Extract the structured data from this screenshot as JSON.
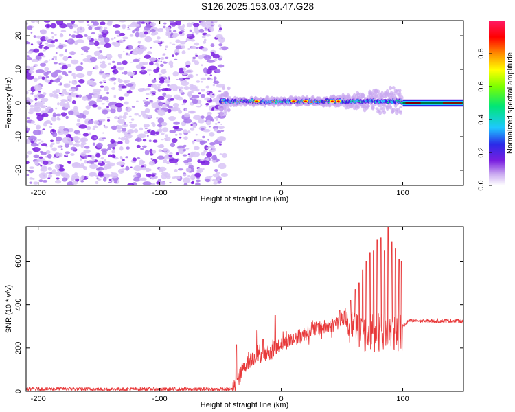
{
  "title": "S126.2025.153.03.47.G28",
  "chart_data": [
    {
      "type": "heatmap",
      "xlabel": "Height of straight line (km)",
      "ylabel": "Frequency (Hz)",
      "xlim": [
        -210,
        150
      ],
      "ylim": [
        -24.5,
        24.5
      ],
      "x_ticks": [
        -200,
        -100,
        0,
        100
      ],
      "y_ticks": [
        -20,
        -10,
        0,
        10,
        20
      ],
      "colorbar": {
        "label": "Normalized spectral amplitude",
        "range": [
          0,
          1
        ],
        "ticks": [
          0.0,
          0.2,
          0.4,
          0.6,
          0.8
        ],
        "colors": [
          "#ffffff",
          "#b28ce8",
          "#7a1ee0",
          "#2a2ae8",
          "#1ec8ff",
          "#00e676",
          "#7cff00",
          "#ffff00",
          "#ff8c00",
          "#ff0000",
          "#ff1a66"
        ]
      },
      "regions": [
        {
          "x": [
            -210,
            -50
          ],
          "description": "broadband noise",
          "level": 0.2
        },
        {
          "x": [
            -50,
            100
          ],
          "description": "signal near 0 Hz with spread",
          "center_hz": 0.5,
          "level": 0.7
        },
        {
          "x": [
            100,
            150
          ],
          "description": "narrow tone at 0 Hz",
          "center_hz": 0.0,
          "level": 0.95
        }
      ]
    },
    {
      "type": "line",
      "xlabel": "Height of straight line (km)",
      "ylabel": "SNR (10 * v/v)",
      "xlim": [
        -210,
        150
      ],
      "ylim": [
        0,
        760
      ],
      "x_ticks": [
        -200,
        -100,
        0,
        100
      ],
      "y_ticks": [
        0,
        200,
        400,
        600
      ],
      "series": [
        {
          "color": "#e8393a",
          "x": [
            -210,
            -180,
            -150,
            -120,
            -90,
            -60,
            -40,
            -35,
            -30,
            -25,
            -20,
            -10,
            0,
            10,
            20,
            30,
            40,
            50,
            60,
            70,
            80,
            90,
            100,
            105,
            120,
            150
          ],
          "y": [
            10,
            12,
            10,
            11,
            10,
            10,
            10,
            60,
            120,
            150,
            160,
            180,
            220,
            240,
            270,
            290,
            300,
            330,
            320,
            300,
            310,
            320,
            300,
            325,
            325,
            325
          ],
          "peaks": [
            {
              "x": -37,
              "y": 215
            },
            {
              "x": -20,
              "y": 280
            },
            {
              "x": -15,
              "y": 240
            },
            {
              "x": -5,
              "y": 350
            },
            {
              "x": 30,
              "y": 310
            },
            {
              "x": 48,
              "y": 375
            },
            {
              "x": 52,
              "y": 370
            },
            {
              "x": 57,
              "y": 420
            },
            {
              "x": 61,
              "y": 470
            },
            {
              "x": 64,
              "y": 500
            },
            {
              "x": 67,
              "y": 560
            },
            {
              "x": 70,
              "y": 600
            },
            {
              "x": 73,
              "y": 640
            },
            {
              "x": 76,
              "y": 650
            },
            {
              "x": 79,
              "y": 700
            },
            {
              "x": 82,
              "y": 710
            },
            {
              "x": 85,
              "y": 650
            },
            {
              "x": 88,
              "y": 760
            },
            {
              "x": 91,
              "y": 690
            },
            {
              "x": 94,
              "y": 660
            },
            {
              "x": 97,
              "y": 610
            },
            {
              "x": 99,
              "y": 600
            }
          ]
        }
      ]
    }
  ]
}
